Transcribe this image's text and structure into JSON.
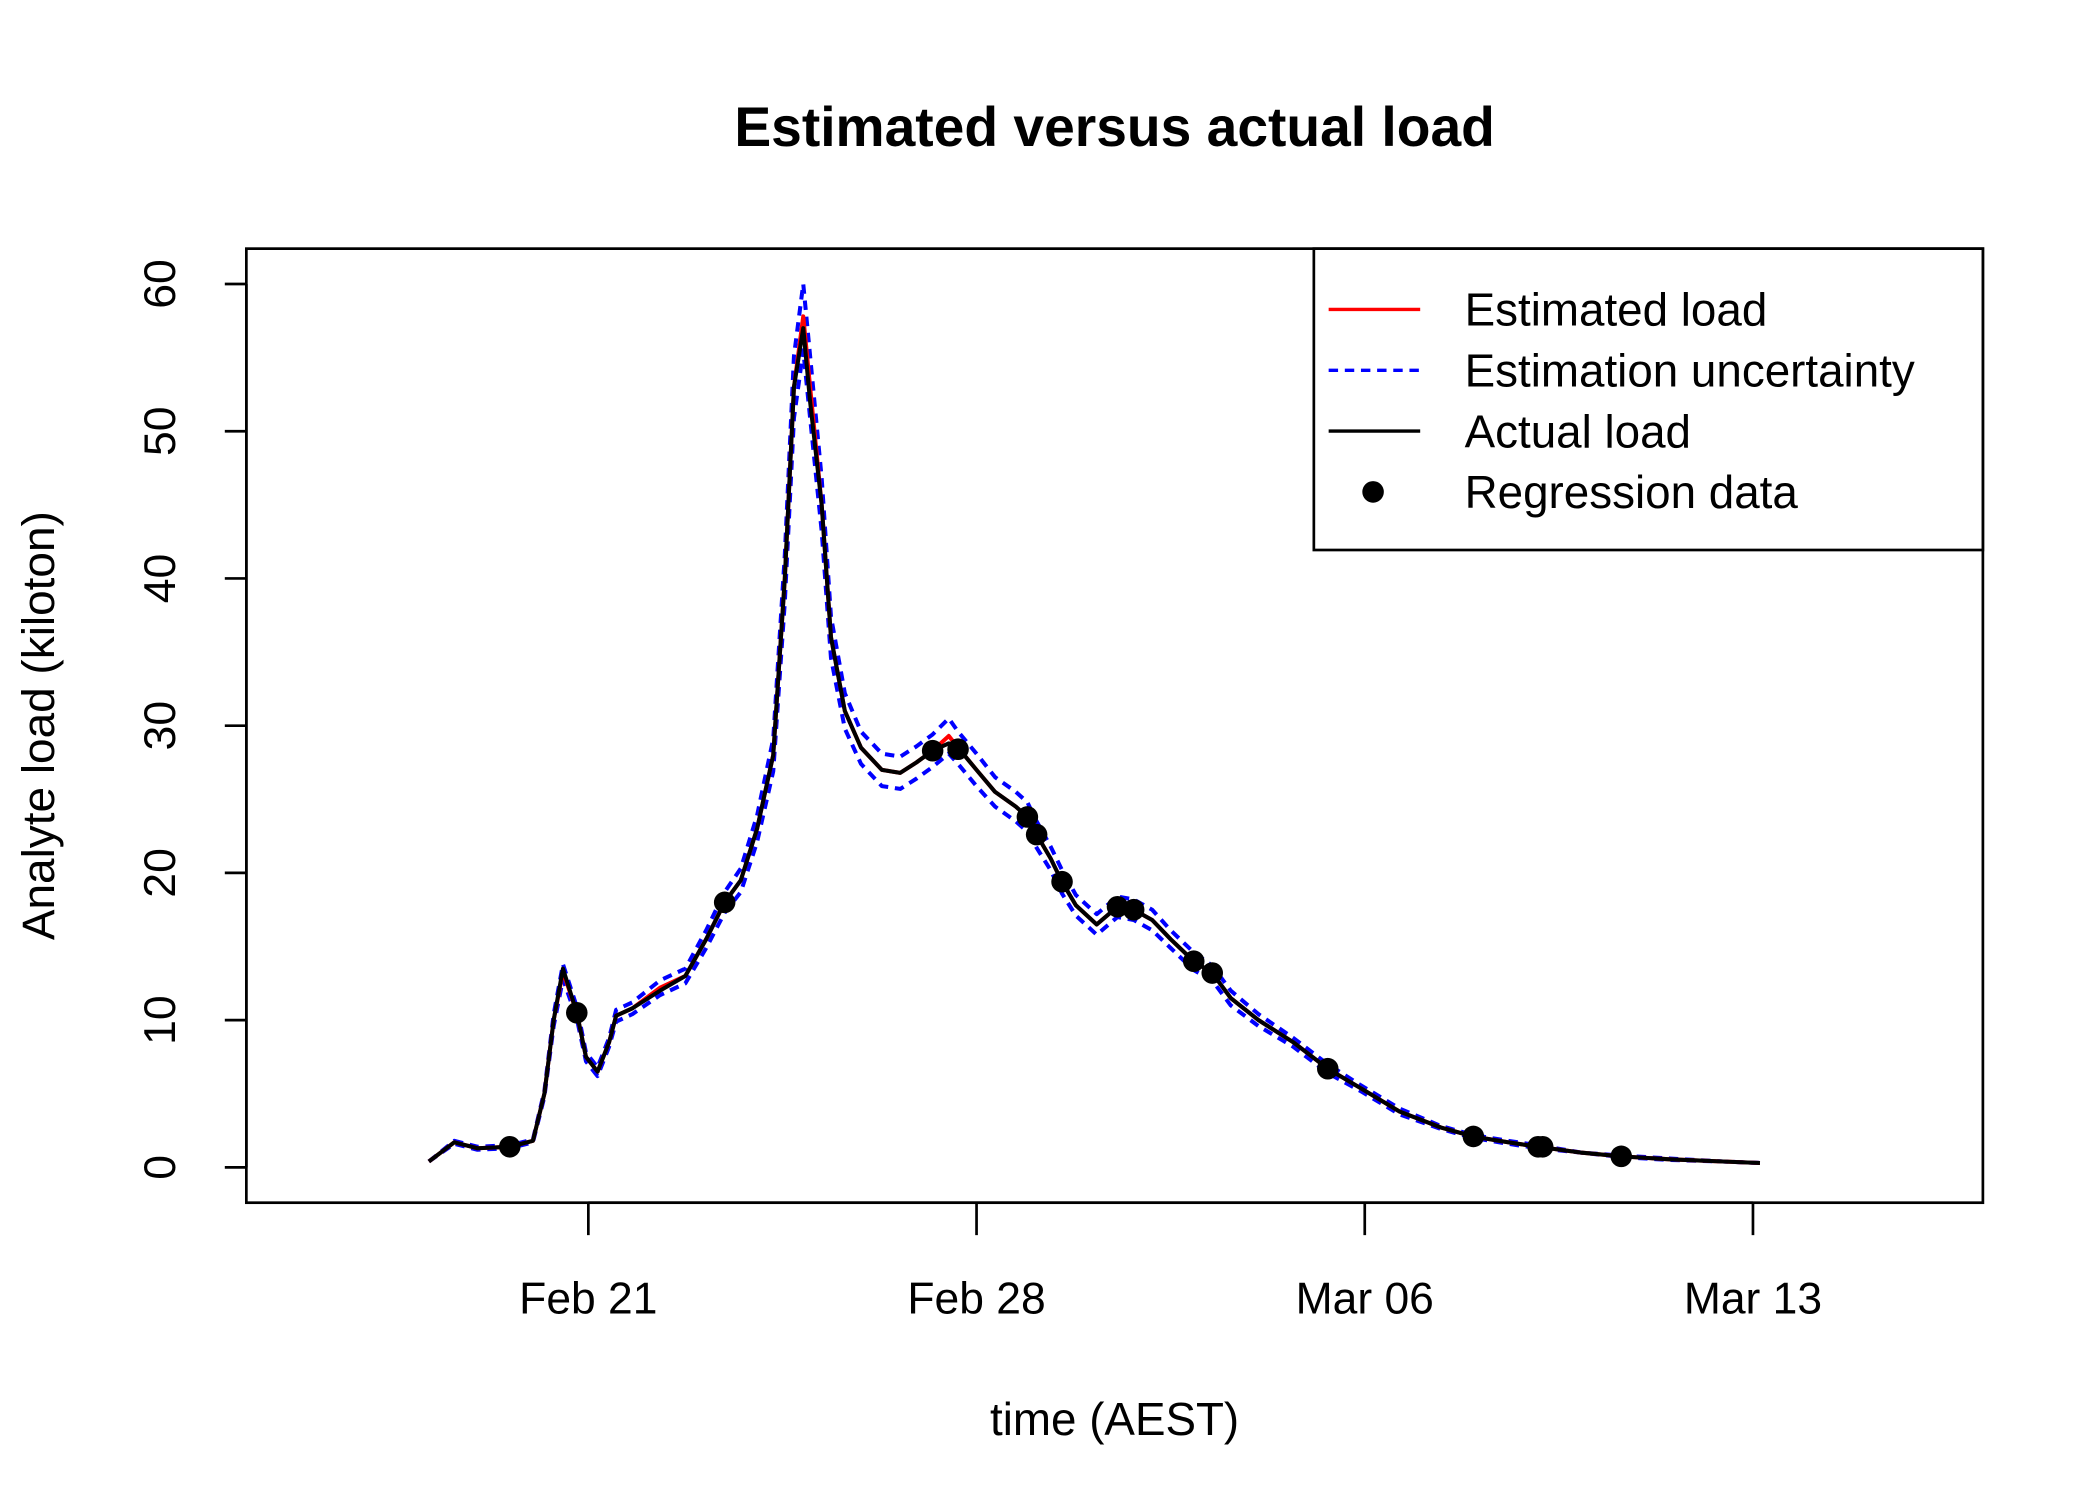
{
  "chart_data": {
    "type": "line",
    "title": "Estimated versus actual load",
    "xlabel": "time (AEST)",
    "ylabel": "Analyte load (kiloton)",
    "xlim": [
      "Feb 14 20:00",
      "Mar 17 03:30"
    ],
    "ylim": [
      -2.4,
      62.4
    ],
    "x_ticks": [
      {
        "date": "Feb 21 00:00",
        "label": "Feb 21"
      },
      {
        "date": "Feb 28 00:00",
        "label": "Feb 28"
      },
      {
        "date": "Mar 06 00:00",
        "label": "Mar 06"
      },
      {
        "date": "Mar 13 00:00",
        "label": "Mar 13"
      }
    ],
    "y_ticks": [
      0,
      10,
      20,
      30,
      40,
      50,
      60
    ],
    "grid": false,
    "legend_position": "top-right",
    "x": [
      "Feb 18 03:00",
      "Feb 18 14:00",
      "Feb 19 00:00",
      "Feb 19 14:00",
      "Feb 20 00:00",
      "Feb 20 05:00",
      "Feb 20 09:00",
      "Feb 20 13:00",
      "Feb 20 19:00",
      "Feb 20 23:00",
      "Feb 21 04:00",
      "Feb 21 09:00",
      "Feb 21 12:00",
      "Feb 21 19:00",
      "Feb 22 07:00",
      "Feb 22 18:00",
      "Feb 23 03:00",
      "Feb 23 11:00",
      "Feb 23 18:00",
      "Feb 24 01:00",
      "Feb 24 08:00",
      "Feb 24 13:00",
      "Feb 24 17:00",
      "Feb 24 21:00",
      "Feb 25 00:00",
      "Feb 25 05:00",
      "Feb 25 09:00",
      "Feb 25 15:00",
      "Feb 25 22:00",
      "Feb 26 07:00",
      "Feb 26 15:00",
      "Feb 26 22:00",
      "Feb 27 05:00",
      "Feb 27 12:00",
      "Feb 27 16:00",
      "Feb 28 00:00",
      "Feb 28 08:00",
      "Feb 28 17:00",
      "Feb 28 22:00",
      "Feb 29 02:00",
      "Feb 29 08:00",
      "Feb 29 13:00",
      "Feb 29 19:00",
      "Mar 01 04:00",
      "Mar 01 13:00",
      "Mar 01 20:00",
      "Mar 02 04:00",
      "Mar 02 12:00",
      "Mar 02 22:00",
      "Mar 03 06:00",
      "Mar 03 14:00",
      "Mar 04 02:00",
      "Mar 04 17:00",
      "Mar 05 08:00",
      "Mar 05 22:00",
      "Mar 06 15:00",
      "Mar 07 09:00",
      "Mar 07 23:00",
      "Mar 08 14:00",
      "Mar 09 03:00",
      "Mar 09 22:00",
      "Mar 10 15:00",
      "Mar 11 12:00",
      "Mar 12 11:00",
      "Mar 13 03:00"
    ],
    "series": [
      {
        "name": "Estimation uncertainty",
        "color": "#0000ff",
        "style": "dashed",
        "bound": "upper",
        "values": [
          0.4,
          1.8,
          1.4,
          1.5,
          1.9,
          5.2,
          10.4,
          13.8,
          10.9,
          7.8,
          6.8,
          8.8,
          10.7,
          11.2,
          12.7,
          13.5,
          16.1,
          18.7,
          20.3,
          23.9,
          29.1,
          41.6,
          55.1,
          60,
          55.1,
          46.8,
          37.4,
          32.2,
          29.6,
          28.1,
          27.9,
          28.6,
          29.4,
          30.5,
          29.6,
          28.1,
          26.5,
          25.5,
          24.8,
          23.5,
          21.8,
          20.2,
          18.5,
          17.2,
          18.4,
          18.2,
          17.5,
          16.1,
          14.6,
          13.7,
          12,
          10.4,
          8.8,
          7,
          5.6,
          4,
          2.8,
          2.2,
          1.8,
          1.5,
          1.0,
          0.8,
          0.6,
          0.4,
          0.3
        ]
      },
      {
        "name": "Estimation uncertainty",
        "color": "#0000ff",
        "style": "dashed",
        "bound": "lower",
        "values": [
          0.4,
          1.6,
          1.2,
          1.3,
          1.7,
          4.8,
          9.6,
          12.8,
          10.1,
          7.2,
          6.2,
          8.2,
          9.9,
          10.4,
          11.7,
          12.5,
          14.9,
          17.3,
          18.7,
          22.1,
          26.9,
          38.4,
          50.9,
          55.5,
          50.9,
          43.2,
          34.6,
          29.8,
          27.4,
          25.9,
          25.7,
          26.4,
          27.2,
          28.1,
          27.4,
          25.9,
          24.5,
          23.5,
          22.8,
          21.7,
          20.2,
          18.6,
          17.1,
          15.8,
          17,
          16.8,
          16.1,
          14.9,
          13.4,
          12.7,
          11,
          9.6,
          8.2,
          6.4,
          5.2,
          3.6,
          2.6,
          2,
          1.6,
          1.3,
          1.0,
          0.7,
          0.5,
          0.4,
          0.3
        ]
      },
      {
        "name": "Estimated load",
        "color": "#ff0000",
        "style": "solid",
        "values": [
          0.4,
          1.7,
          1.3,
          1.4,
          1.8,
          5,
          10,
          13.3,
          10.5,
          7.5,
          6.5,
          8.5,
          10.3,
          10.8,
          12.2,
          13,
          15.5,
          18,
          19.5,
          23,
          28,
          40,
          53,
          57.8,
          53,
          45,
          36,
          31,
          28.5,
          27,
          26.8,
          27.5,
          28.3,
          29.3,
          28.5,
          27,
          25.5,
          24.5,
          23.8,
          22.6,
          21,
          19.4,
          17.8,
          16.5,
          17.7,
          17.5,
          16.8,
          15.5,
          14,
          13.2,
          11.5,
          10,
          8.5,
          6.7,
          5.4,
          3.8,
          2.7,
          2.1,
          1.7,
          1.4,
          1.0,
          0.75,
          0.55,
          0.4,
          0.3
        ]
      },
      {
        "name": "Actual load",
        "color": "#000000",
        "style": "solid",
        "values": [
          0.4,
          1.7,
          1.3,
          1.4,
          1.8,
          5,
          10,
          13.5,
          10.5,
          7.5,
          6.5,
          8.5,
          10.3,
          10.8,
          12,
          13,
          15.5,
          18,
          19.5,
          23,
          28,
          40,
          53,
          57,
          52,
          45,
          36,
          31,
          28.5,
          27,
          26.8,
          27.5,
          28.3,
          28.8,
          28.5,
          27,
          25.5,
          24.5,
          23.8,
          22.6,
          21,
          19.4,
          17.8,
          16.5,
          17.7,
          17.5,
          16.8,
          15.5,
          14,
          13.2,
          11.5,
          10,
          8.5,
          6.7,
          5.4,
          3.8,
          2.7,
          2.1,
          1.7,
          1.4,
          1.0,
          0.75,
          0.55,
          0.4,
          0.3
        ]
      }
    ],
    "points": {
      "name": "Regression data",
      "color": "#000000",
      "x": [
        "Feb 19 14:00",
        "Feb 20 19:00",
        "Feb 23 11:00",
        "Feb 27 05:00",
        "Feb 27 16:00",
        "Feb 28 22:00",
        "Feb 29 02:00",
        "Feb 29 13:00",
        "Mar 01 13:00",
        "Mar 01 20:00",
        "Mar 02 22:00",
        "Mar 03 06:00",
        "Mar 05 08:00",
        "Mar 07 23:00",
        "Mar 09 03:00",
        "Mar 09 05:00",
        "Mar 10 15:00"
      ],
      "y": [
        1.4,
        10.5,
        18,
        28.3,
        28.4,
        23.8,
        22.6,
        19.4,
        17.7,
        17.5,
        14,
        13.2,
        6.7,
        2.1,
        1.4,
        1.4,
        0.75
      ]
    },
    "legend": [
      {
        "label": "Estimated load",
        "kind": "line",
        "color": "#ff0000",
        "style": "solid"
      },
      {
        "label": "Estimation uncertainty",
        "kind": "line",
        "color": "#0000ff",
        "style": "dashed"
      },
      {
        "label": "Actual load",
        "kind": "line",
        "color": "#000000",
        "style": "solid"
      },
      {
        "label": "Regression data",
        "kind": "point",
        "color": "#000000"
      }
    ]
  }
}
